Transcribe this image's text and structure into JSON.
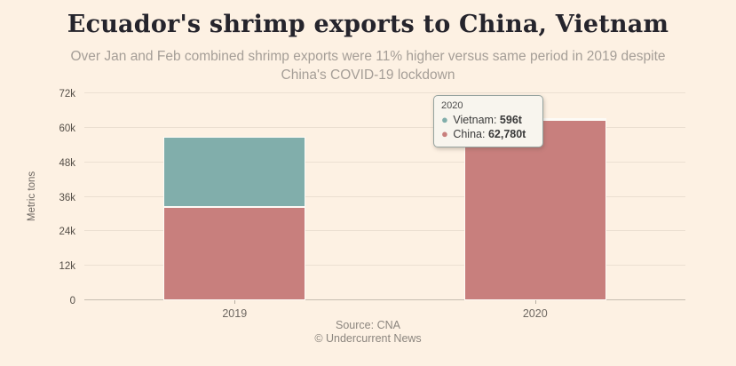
{
  "header": {
    "title": "Ecuador's shrimp exports to China, Vietnam",
    "subtitle": "Over Jan and Feb combined shrimp exports were 11% higher versus same period in 2019 despite China's COVID-19 lockdown"
  },
  "chart_data": {
    "type": "bar",
    "stacked": true,
    "title": "Ecuador's shrimp exports to China, Vietnam",
    "subtitle": "Over Jan and Feb combined shrimp exports were 11% higher versus same period in 2019 despite China's COVID-19 lockdown",
    "categories": [
      "2019",
      "2020"
    ],
    "series": [
      {
        "name": "China",
        "color": "#c87f7d",
        "values": [
          32400,
          62780
        ]
      },
      {
        "name": "Vietnam",
        "color": "#81aeab",
        "values": [
          24500,
          596
        ]
      }
    ],
    "xlabel": "",
    "ylabel": "Metric tons",
    "ylim": [
      0,
      72000
    ],
    "ytick_step": 12000,
    "ytick_labels": [
      "0",
      "12k",
      "24k",
      "36k",
      "48k",
      "60k",
      "72k"
    ],
    "grid": true,
    "legend": false
  },
  "tooltip": {
    "header": "2020",
    "rows": [
      {
        "label": "Vietnam",
        "value": "596t",
        "color": "#81aeab"
      },
      {
        "label": "China",
        "value": "62,780t",
        "color": "#c87f7d"
      }
    ]
  },
  "footer": {
    "source": "Source: CNA",
    "copyright": "© Undercurrent News"
  },
  "colors": {
    "background": "#fdf1e3",
    "vietnam": "#81aeab",
    "china": "#c87f7d"
  }
}
